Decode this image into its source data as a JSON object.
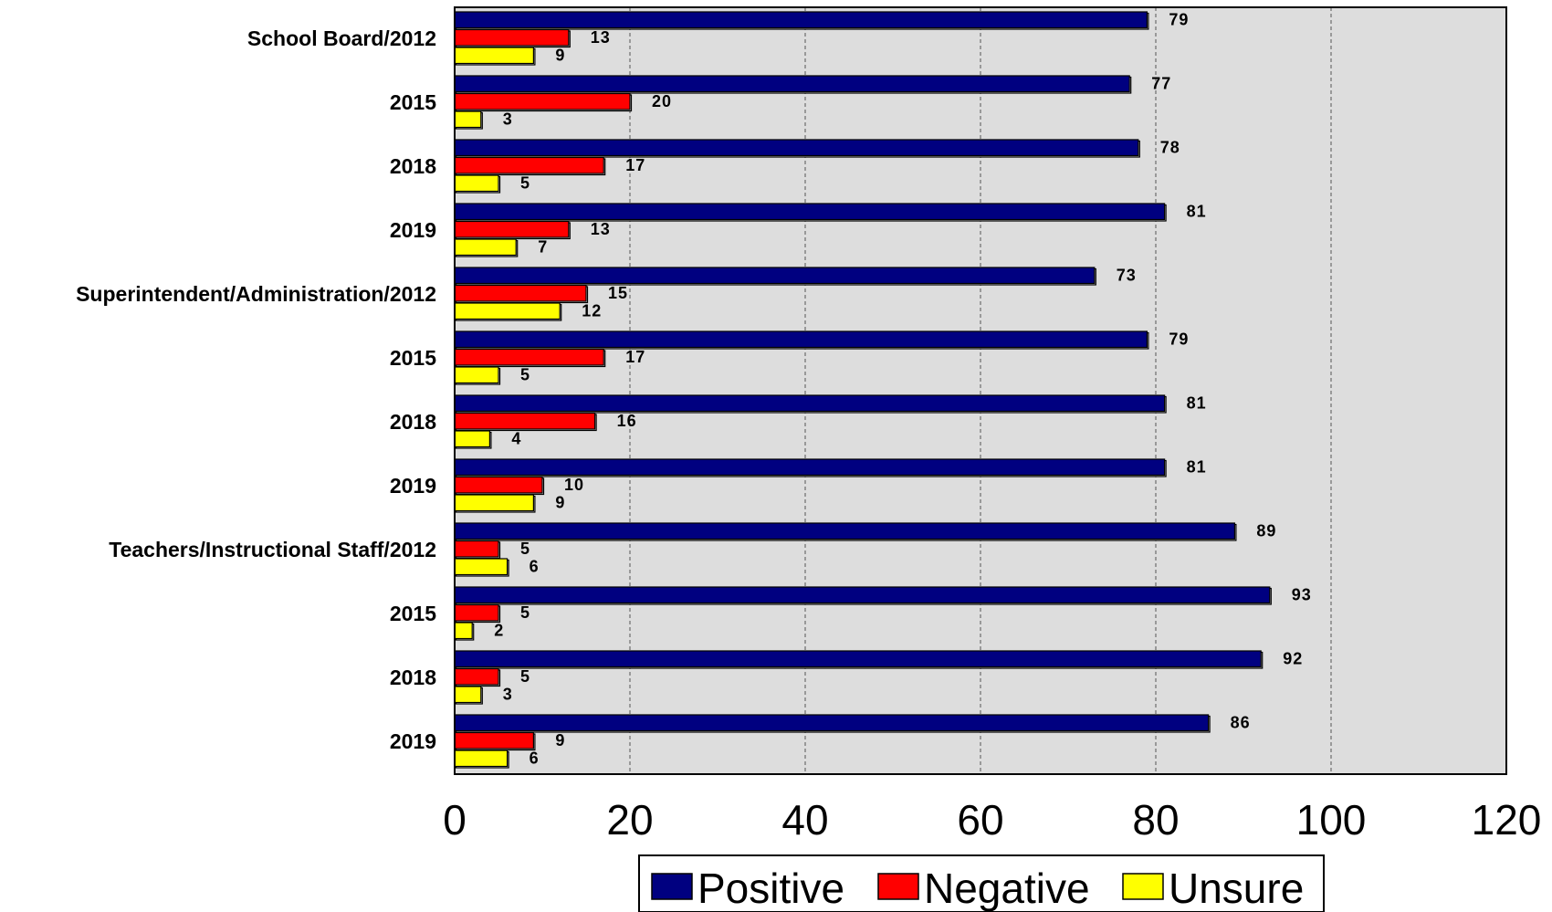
{
  "chart_data": {
    "type": "bar",
    "orientation": "horizontal",
    "categories": [
      "School Board/2012",
      "2015",
      "2018",
      "2019",
      "Superintendent/Administration/2012",
      "2015",
      "2018",
      "2019",
      "Teachers/Instructional Staff/2012",
      "2015",
      "2018",
      "2019"
    ],
    "series": [
      {
        "name": "Positive",
        "color": "#000080",
        "values": [
          79,
          77,
          78,
          81,
          73,
          79,
          81,
          81,
          89,
          93,
          92,
          86
        ]
      },
      {
        "name": "Negative",
        "color": "#ff0000",
        "values": [
          13,
          20,
          17,
          13,
          15,
          17,
          16,
          10,
          5,
          5,
          5,
          9
        ]
      },
      {
        "name": "Unsure",
        "color": "#ffff00",
        "values": [
          9,
          3,
          5,
          7,
          12,
          5,
          4,
          9,
          6,
          2,
          3,
          6
        ]
      }
    ],
    "xlim": [
      0,
      120
    ],
    "xticks": [
      "0",
      "20",
      "40",
      "60",
      "80",
      "100",
      "120"
    ],
    "grid": true,
    "plot_background": "#dddddd",
    "legend_position": "bottom",
    "title": "",
    "xlabel": "",
    "ylabel": ""
  }
}
